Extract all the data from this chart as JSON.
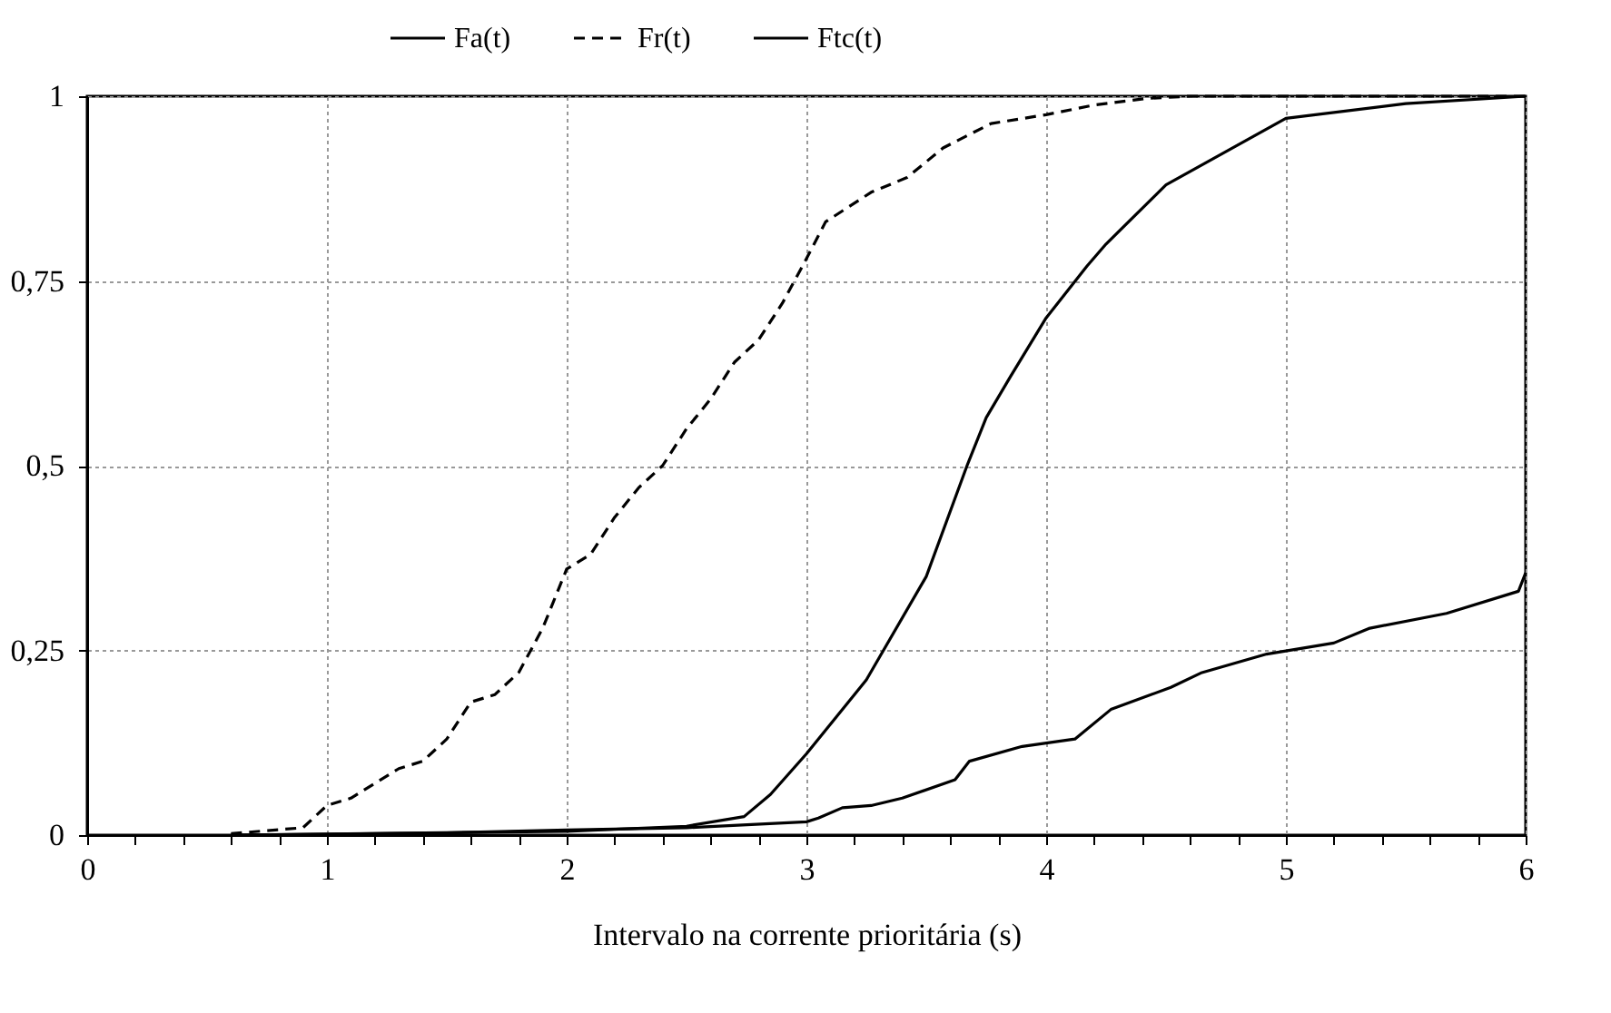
{
  "chart_data": {
    "type": "line",
    "xlabel": "Intervalo na corrente prioritária (s)",
    "xlim": [
      0,
      6
    ],
    "ylim": [
      0,
      1
    ],
    "xticks": [
      0,
      {
        "value": 0.2,
        "label": null
      },
      {
        "value": 0.4,
        "label": null
      },
      {
        "value": 0.6,
        "label": null
      },
      {
        "value": 0.8,
        "label": null
      },
      1,
      {
        "value": 1.2,
        "label": null
      },
      {
        "value": 1.4,
        "label": null
      },
      {
        "value": 1.6,
        "label": null
      },
      {
        "value": 1.8,
        "label": null
      },
      2,
      {
        "value": 2.2,
        "label": null
      },
      {
        "value": 2.4,
        "label": null
      },
      {
        "value": 2.6,
        "label": null
      },
      {
        "value": 2.8,
        "label": null
      },
      3,
      {
        "value": 3.2,
        "label": null
      },
      {
        "value": 3.4,
        "label": null
      },
      {
        "value": 3.6,
        "label": null
      },
      {
        "value": 3.8,
        "label": null
      },
      4,
      {
        "value": 4.2,
        "label": null
      },
      {
        "value": 4.4,
        "label": null
      },
      {
        "value": 4.6,
        "label": null
      },
      {
        "value": 4.8,
        "label": null
      },
      5,
      {
        "value": 5.2,
        "label": null
      },
      {
        "value": 5.4,
        "label": null
      },
      {
        "value": 5.6,
        "label": null
      },
      {
        "value": 5.8,
        "label": null
      },
      6
    ],
    "yticks": [
      0,
      {
        "value": 0.25,
        "label": "0,25"
      },
      {
        "value": 0.5,
        "label": "0,5"
      },
      {
        "value": 0.75,
        "label": "0,75"
      },
      1
    ],
    "grid": true,
    "legend": "top",
    "marker": "none",
    "series": [
      {
        "name": "Fa(t)",
        "color": "#000000",
        "line_style": "solid",
        "x": [
          0.6,
          1.5,
          2.0,
          2.5,
          3.0,
          3.05,
          3.15,
          3.27,
          3.4,
          3.62,
          3.68,
          3.9,
          4.12,
          4.27,
          4.52,
          4.65,
          4.92,
          5.2,
          5.35,
          5.67,
          5.97,
          6.0
        ],
        "values": [
          0.0,
          0.003,
          0.007,
          0.01,
          0.018,
          0.023,
          0.037,
          0.04,
          0.05,
          0.075,
          0.1,
          0.12,
          0.13,
          0.17,
          0.2,
          0.22,
          0.245,
          0.26,
          0.28,
          0.3,
          0.33,
          0.355
        ]
      },
      {
        "name": "Fr(t)",
        "color": "#000000",
        "line_style": "dashed",
        "x": [
          0.6,
          0.9,
          1.0,
          1.1,
          1.2,
          1.3,
          1.4,
          1.5,
          1.6,
          1.7,
          1.8,
          1.9,
          2.0,
          2.1,
          2.2,
          2.3,
          2.4,
          2.5,
          2.6,
          2.7,
          2.8,
          2.9,
          3.0,
          3.08,
          3.27,
          3.42,
          3.57,
          3.77,
          4.0,
          4.2,
          4.42,
          4.6,
          6.0
        ],
        "values": [
          0.002,
          0.01,
          0.04,
          0.05,
          0.07,
          0.09,
          0.1,
          0.13,
          0.18,
          0.19,
          0.22,
          0.28,
          0.36,
          0.38,
          0.43,
          0.47,
          0.5,
          0.55,
          0.59,
          0.64,
          0.67,
          0.72,
          0.78,
          0.83,
          0.87,
          0.89,
          0.93,
          0.963,
          0.975,
          0.988,
          0.997,
          1.0,
          1.0
        ]
      },
      {
        "name": "Ftc(t)",
        "color": "#000000",
        "line_style": "solid",
        "x": [
          0.6,
          2.0,
          2.5,
          2.74,
          2.85,
          3.0,
          3.25,
          3.5,
          3.67,
          3.75,
          3.85,
          4.0,
          4.17,
          4.25,
          4.5,
          5.0,
          5.5,
          6.0
        ],
        "values": [
          0.0,
          0.005,
          0.012,
          0.025,
          0.055,
          0.11,
          0.21,
          0.35,
          0.5,
          0.565,
          0.62,
          0.7,
          0.77,
          0.8,
          0.88,
          0.97,
          0.99,
          1.0
        ]
      }
    ]
  }
}
